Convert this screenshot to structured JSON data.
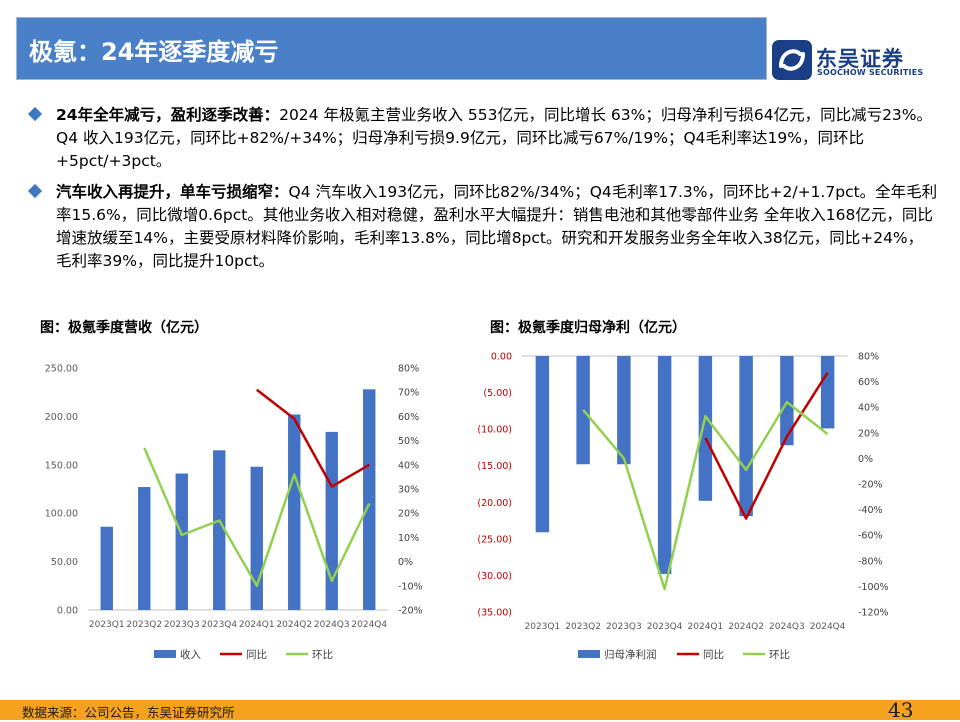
{
  "header": {
    "title": "极氪：24年逐季度减亏"
  },
  "logo": {
    "cn": "东吴证券",
    "en": "SOOCHOW SECURITIES"
  },
  "bullets": [
    {
      "bold": "24年全年减亏，盈利逐季改善：",
      "text": "2024 年极氪主营业务收入 553亿元，同比增长 63%；归母净利亏损64亿元，同比减亏23%。Q4 收入193亿元，同环比+82%/+34%；归母净利亏损9.9亿元，同环比减亏67%/19%；Q4毛利率达19%，同环比 +5pct/+3pct。"
    },
    {
      "bold": "汽车收入再提升，单车亏损缩窄：",
      "text": "Q4 汽车收入193亿元，同环比82%/34%；Q4毛利率17.3%，同环比+2/+1.7pct。全年毛利率15.6%，同比微增0.6pct。其他业务收入相对稳健，盈利水平大幅提升：销售电池和其他零部件业务 全年收入168亿元，同比增速放缓至14%，主要受原材料降价影响，毛利率13.8%，同比增8pct。研究和开发服务业务全年收入38亿元，同比+24%，毛利率39%，同比提升10pct。"
    }
  ],
  "chart_data": [
    {
      "type": "bar",
      "title": "图：极氪季度营收（亿元）",
      "categories": [
        "2023Q1",
        "2023Q2",
        "2023Q3",
        "2023Q4",
        "2024Q1",
        "2024Q2",
        "2024Q3",
        "2024Q4"
      ],
      "series": [
        {
          "name": "收入",
          "type": "bar",
          "axis": "left",
          "color": "#4472c4",
          "values": [
            86,
            127,
            141,
            165,
            148,
            202,
            184,
            228
          ]
        },
        {
          "name": "同比",
          "type": "line",
          "axis": "right",
          "color": "#c00000",
          "values": [
            null,
            null,
            null,
            null,
            71,
            59,
            31,
            40
          ]
        },
        {
          "name": "环比",
          "type": "line",
          "axis": "right",
          "color": "#92d050",
          "values": [
            null,
            47,
            11,
            17,
            -10,
            36,
            -8,
            24
          ]
        }
      ],
      "left_axis": {
        "range": [
          0,
          250
        ],
        "ticks": [
          "0.00",
          "50.00",
          "100.00",
          "150.00",
          "200.00",
          "250.00"
        ]
      },
      "right_axis": {
        "range": [
          -20,
          80
        ],
        "ticks": [
          "-20%",
          "-10%",
          "0%",
          "10%",
          "20%",
          "30%",
          "40%",
          "50%",
          "60%",
          "70%",
          "80%"
        ]
      },
      "legend": "bottom"
    },
    {
      "type": "bar",
      "title": "图：极氪季度归母净利（亿元）",
      "categories": [
        "2023Q1",
        "2023Q2",
        "2023Q3",
        "2023Q4",
        "2024Q1",
        "2024Q2",
        "2024Q3",
        "2024Q4"
      ],
      "series": [
        {
          "name": "归母净利润",
          "type": "bar",
          "axis": "left",
          "color": "#4472c4",
          "values": [
            -24.1,
            -14.8,
            -14.8,
            -29.8,
            -19.8,
            -21.9,
            -12.2,
            -9.9
          ]
        },
        {
          "name": "同比",
          "type": "line",
          "axis": "right",
          "color": "#c00000",
          "values": [
            null,
            null,
            null,
            null,
            16,
            -47,
            17,
            67
          ]
        },
        {
          "name": "环比",
          "type": "line",
          "axis": "right",
          "color": "#92d050",
          "values": [
            null,
            38,
            0,
            -102,
            33,
            -9,
            44,
            19
          ]
        }
      ],
      "left_axis": {
        "range": [
          -35,
          0
        ],
        "ticks": [
          "(35.00)",
          "(30.00)",
          "(25.00)",
          "(20.00)",
          "(15.00)",
          "(10.00)",
          "(5.00)",
          "0.00"
        ]
      },
      "right_axis": {
        "range": [
          -120,
          80
        ],
        "ticks": [
          "-120%",
          "-100%",
          "-80%",
          "-60%",
          "-40%",
          "-20%",
          "0%",
          "20%",
          "40%",
          "60%",
          "80%"
        ]
      },
      "legend": "bottom"
    }
  ],
  "footer": {
    "source": "数据来源：公司公告，东吴证券研究所",
    "page": "43"
  }
}
